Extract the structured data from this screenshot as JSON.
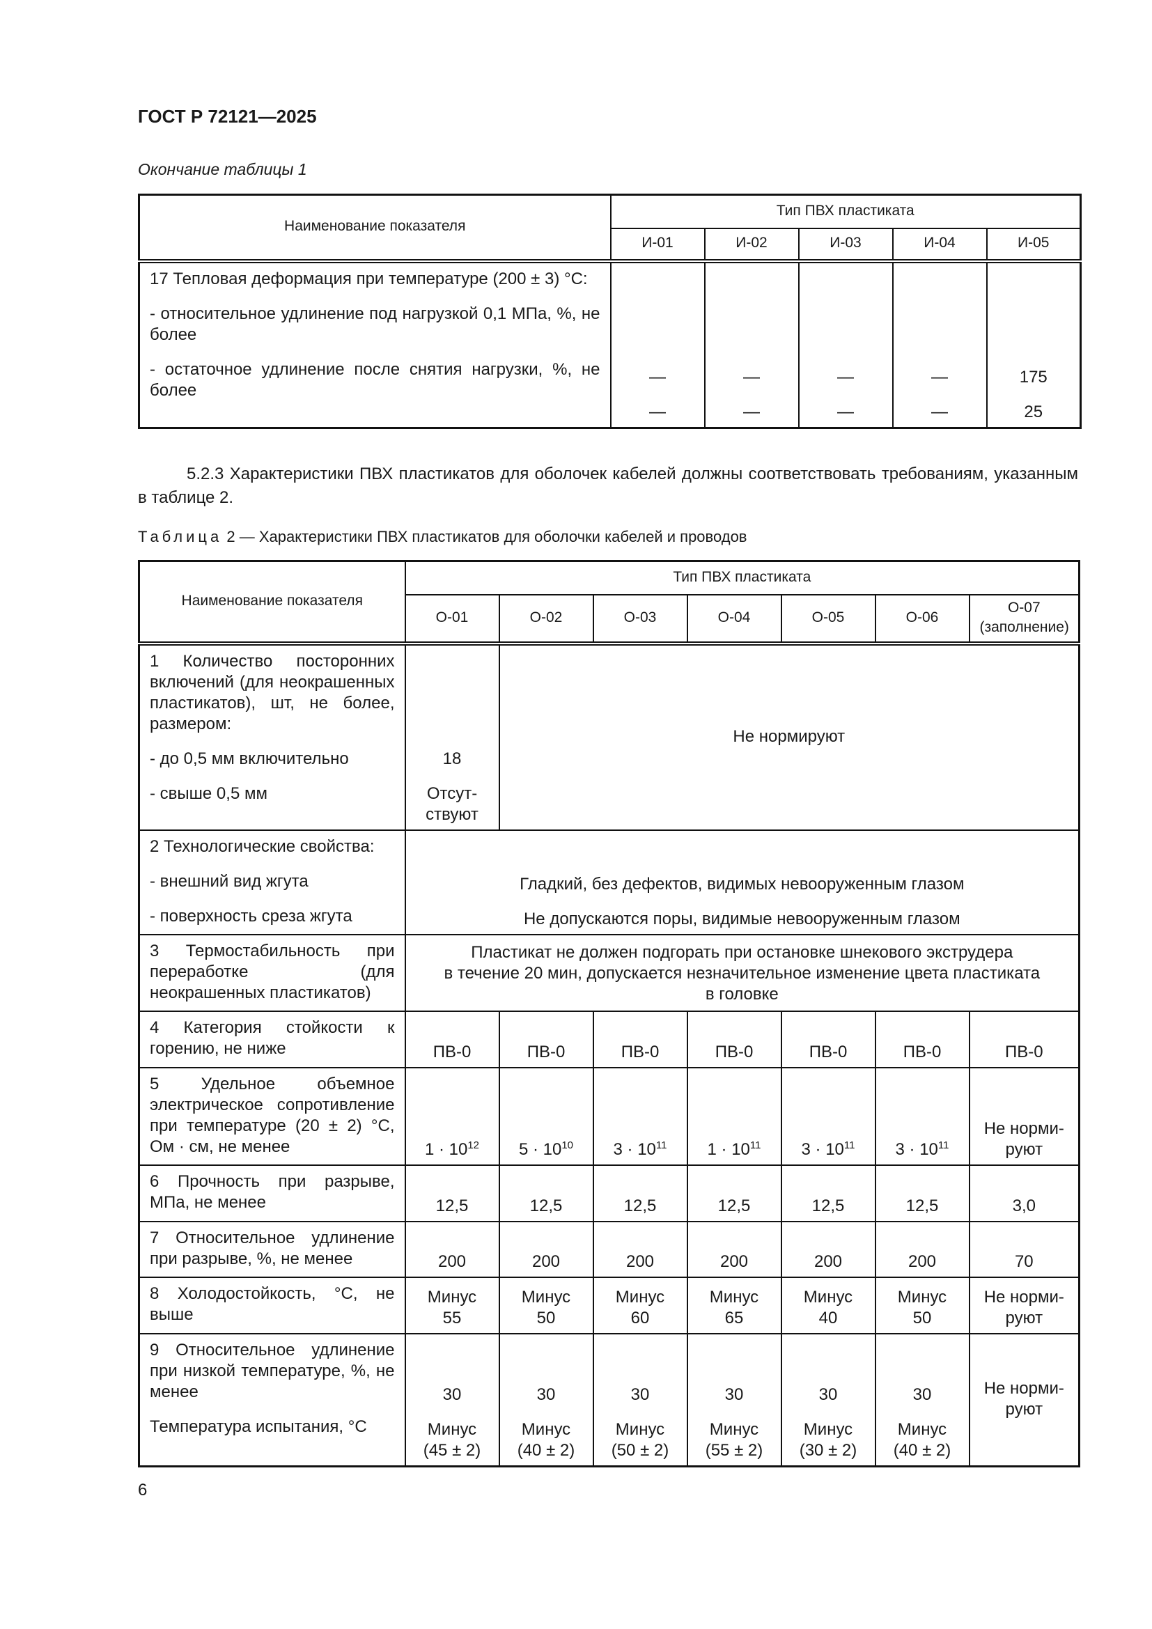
{
  "header": {
    "doc_id": "ГОСТ Р 72121—2025",
    "continuation": "Окончание таблицы 1"
  },
  "table1": {
    "name_header": "Наименование показателя",
    "type_header": "Тип ПВХ пластиката",
    "columns": [
      "И-01",
      "И-02",
      "И-03",
      "И-04",
      "И-05"
    ],
    "rows": [
      {
        "label": [
          "17 Тепловая деформация при температуре (200 ± 3) °С:",
          "- относительное удлинение под нагрузкой 0,1 МПа, %, не более",
          "- остаточное удлинение после снятия нагрузки, %, не более"
        ],
        "cells": [
          {
            "span": 1,
            "lines": [
              "—",
              "—"
            ]
          },
          {
            "span": 1,
            "lines": [
              "—",
              "—"
            ]
          },
          {
            "span": 1,
            "lines": [
              "—",
              "—"
            ]
          },
          {
            "span": 1,
            "lines": [
              "—",
              "—"
            ]
          },
          {
            "span": 1,
            "lines": [
              "175",
              "25"
            ]
          }
        ]
      }
    ]
  },
  "paragraph": "5.2.3 Характеристики ПВХ пластикатов для оболочек кабелей должны соответствовать требованиям, указанным в таблице 2.",
  "table2_caption": {
    "label": "Таблица",
    "text": "2 — Характеристики ПВХ пластикатов для оболочки кабелей и проводов"
  },
  "table2": {
    "name_header": "Наименование показателя",
    "type_header": "Тип ПВХ пластиката",
    "columns": [
      "О-01",
      "О-02",
      "О-03",
      "О-04",
      "О-05",
      "О-06",
      "О-07\n(заполнение)"
    ],
    "rows": [
      {
        "label": [
          "1 Количество посторонних включений (для неокрашенных пластикатов), шт, не более, размером:",
          "- до 0,5 мм включительно",
          "- свыше 0,5 мм"
        ],
        "cells": [
          {
            "span": 1,
            "lines": [
              "18",
              "Отсут-\nствуют"
            ]
          },
          {
            "span": 6,
            "valign": "middle",
            "lines": [
              "Не нормируют"
            ]
          }
        ]
      },
      {
        "label": [
          "2 Технологические свойства:",
          "- внешний вид жгута",
          "- поверхность среза жгута"
        ],
        "cells": [
          {
            "span": 7,
            "lines": [
              "Гладкий, без дефектов, видимых невооруженным глазом",
              "Не допускаются поры, видимые невооруженным глазом"
            ]
          }
        ]
      },
      {
        "label": [
          "3 Термостабильность при переработке (для неокрашенных пластикатов)"
        ],
        "cells": [
          {
            "span": 7,
            "valign": "top",
            "lines": [
              "Пластикат не должен подгорать при остановке шнекового экструдера\nв течение 20 мин, допускается незначительное изменение цвета пластиката\nв головке"
            ]
          }
        ]
      },
      {
        "label": [
          "4 Категория стойкости к горению, не ниже"
        ],
        "cells": [
          {
            "span": 1,
            "lines": [
              "ПВ-0"
            ]
          },
          {
            "span": 1,
            "lines": [
              "ПВ-0"
            ]
          },
          {
            "span": 1,
            "lines": [
              "ПВ-0"
            ]
          },
          {
            "span": 1,
            "lines": [
              "ПВ-0"
            ]
          },
          {
            "span": 1,
            "lines": [
              "ПВ-0"
            ]
          },
          {
            "span": 1,
            "lines": [
              "ПВ-0"
            ]
          },
          {
            "span": 1,
            "lines": [
              "ПВ-0"
            ]
          }
        ]
      },
      {
        "label": [
          "5 Удельное объемное электрическое сопротивление при температуре (20 ± 2) °С, Ом · см, не менее"
        ],
        "cells": [
          {
            "span": 1,
            "base": "1 · 10",
            "exp": "12"
          },
          {
            "span": 1,
            "base": "5 · 10",
            "exp": "10"
          },
          {
            "span": 1,
            "base": "3 · 10",
            "exp": "11"
          },
          {
            "span": 1,
            "base": "1 · 10",
            "exp": "11"
          },
          {
            "span": 1,
            "base": "3 · 10",
            "exp": "11"
          },
          {
            "span": 1,
            "base": "3 · 10",
            "exp": "11"
          },
          {
            "span": 1,
            "lines": [
              "Не норми-\nруют"
            ]
          }
        ]
      },
      {
        "label": [
          "6 Прочность при разрыве, МПа, не менее"
        ],
        "cells": [
          {
            "span": 1,
            "lines": [
              "12,5"
            ]
          },
          {
            "span": 1,
            "lines": [
              "12,5"
            ]
          },
          {
            "span": 1,
            "lines": [
              "12,5"
            ]
          },
          {
            "span": 1,
            "lines": [
              "12,5"
            ]
          },
          {
            "span": 1,
            "lines": [
              "12,5"
            ]
          },
          {
            "span": 1,
            "lines": [
              "12,5"
            ]
          },
          {
            "span": 1,
            "lines": [
              "3,0"
            ]
          }
        ]
      },
      {
        "label": [
          "7 Относительное удлинение при разрыве, %, не менее"
        ],
        "cells": [
          {
            "span": 1,
            "lines": [
              "200"
            ]
          },
          {
            "span": 1,
            "lines": [
              "200"
            ]
          },
          {
            "span": 1,
            "lines": [
              "200"
            ]
          },
          {
            "span": 1,
            "lines": [
              "200"
            ]
          },
          {
            "span": 1,
            "lines": [
              "200"
            ]
          },
          {
            "span": 1,
            "lines": [
              "200"
            ]
          },
          {
            "span": 1,
            "lines": [
              "70"
            ]
          }
        ]
      },
      {
        "label": [
          "8 Холодостойкость, °С, не выше"
        ],
        "cells": [
          {
            "span": 1,
            "lines": [
              "Минус\n55"
            ]
          },
          {
            "span": 1,
            "lines": [
              "Минус\n50"
            ]
          },
          {
            "span": 1,
            "lines": [
              "Минус\n60"
            ]
          },
          {
            "span": 1,
            "lines": [
              "Минус\n65"
            ]
          },
          {
            "span": 1,
            "lines": [
              "Минус\n40"
            ]
          },
          {
            "span": 1,
            "lines": [
              "Минус\n50"
            ]
          },
          {
            "span": 1,
            "lines": [
              "Не норми-\nруют"
            ]
          }
        ]
      },
      {
        "label": [
          "9 Относительное удлинение при низкой температуре, %, не менее",
          "Температура испытания, °С"
        ],
        "cells": [
          {
            "span": 1,
            "lines": [
              "30",
              "Минус\n(45 ± 2)"
            ]
          },
          {
            "span": 1,
            "lines": [
              "30",
              "Минус\n(40 ± 2)"
            ]
          },
          {
            "span": 1,
            "lines": [
              "30",
              "Минус\n(50 ± 2)"
            ]
          },
          {
            "span": 1,
            "lines": [
              "30",
              "Минус\n(55 ± 2)"
            ]
          },
          {
            "span": 1,
            "lines": [
              "30",
              "Минус\n(30 ± 2)"
            ]
          },
          {
            "span": 1,
            "lines": [
              "30",
              "Минус\n(40 ± 2)"
            ]
          },
          {
            "span": 1,
            "valign": "middle",
            "lines": [
              "Не норми-\nруют"
            ]
          }
        ]
      }
    ]
  },
  "page_number": "6"
}
